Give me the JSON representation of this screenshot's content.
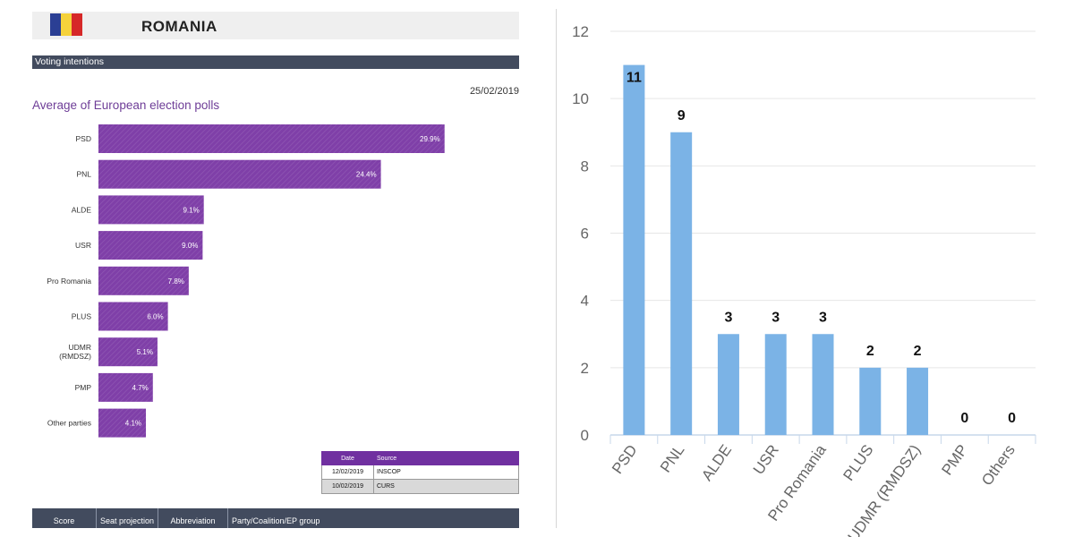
{
  "header": {
    "country": "ROMANIA",
    "flag_colors": [
      "#2b3f94",
      "#f5d23b",
      "#d62828"
    ]
  },
  "section_label": "Voting intentions",
  "left_chart_date": "25/02/2019",
  "left_chart_title": "Average of European election polls",
  "sources": {
    "headers": [
      "Date",
      "Source"
    ],
    "rows": [
      [
        "12/02/2019",
        "INSCOP"
      ],
      [
        "10/02/2019",
        "CURS"
      ]
    ]
  },
  "footer_columns": [
    "Score",
    "Seat projection",
    "Abbreviation",
    "Party/Coalition/EP group"
  ],
  "colors": {
    "left_bar": "#7f3fa8",
    "right_bar": "#7bb3e6",
    "grid": "#e6e6e6",
    "dark_bar": "#424b5e"
  },
  "chart_data": [
    {
      "type": "bar",
      "orientation": "horizontal",
      "title": "Average of European election polls",
      "categories": [
        "PSD",
        "PNL",
        "ALDE",
        "USR",
        "Pro Romania",
        "PLUS",
        "UDMR (RMDSZ)",
        "PMP",
        "Other parties"
      ],
      "category_lines": [
        [
          "PSD"
        ],
        [
          "PNL"
        ],
        [
          "ALDE"
        ],
        [
          "USR"
        ],
        [
          "Pro Romania"
        ],
        [
          "PLUS"
        ],
        [
          "UDMR",
          "(RMDSZ)"
        ],
        [
          "PMP"
        ],
        [
          "Other parties"
        ]
      ],
      "values": [
        29.9,
        24.4,
        9.1,
        9.0,
        7.8,
        6.0,
        5.1,
        4.7,
        4.1
      ],
      "value_labels": [
        "29.9%",
        "24.4%",
        "9.1%",
        "9.0%",
        "7.8%",
        "6.0%",
        "5.1%",
        "4.7%",
        "4.1%"
      ],
      "xlim": [
        0,
        30
      ],
      "grid": false
    },
    {
      "type": "bar",
      "categories": [
        "PSD",
        "PNL",
        "ALDE",
        "USR",
        "Pro Romania",
        "PLUS",
        "UDMR (RMDSZ)",
        "PMP",
        "Others"
      ],
      "values": [
        11,
        9,
        3,
        3,
        3,
        2,
        2,
        0,
        0
      ],
      "value_labels": [
        "11",
        "9",
        "3",
        "3",
        "3",
        "2",
        "2",
        "0",
        "0"
      ],
      "ylim": [
        0,
        12
      ],
      "yticks": [
        "0",
        "2",
        "4",
        "6",
        "8",
        "10",
        "12"
      ],
      "grid": true
    }
  ]
}
